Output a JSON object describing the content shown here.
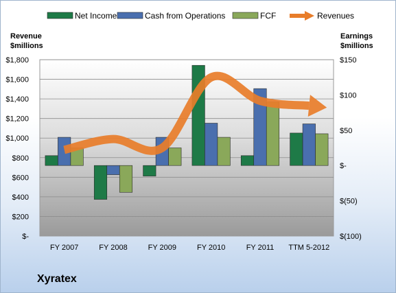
{
  "chart_data": {
    "type": "bar",
    "categories": [
      "FY 2007",
      "FY 2008",
      "FY 2009",
      "FY 2010",
      "FY 2011",
      "TTM 5-2012"
    ],
    "series": [
      {
        "name": "Net Income",
        "axis": "right",
        "kind": "bar",
        "color": "#1e7a47",
        "values": [
          14,
          -48,
          -15,
          142,
          14,
          46
        ]
      },
      {
        "name": "Cash from Operations",
        "axis": "right",
        "kind": "bar",
        "color": "#4a6fae",
        "values": [
          40,
          -13,
          40,
          60,
          109,
          59
        ]
      },
      {
        "name": "FCF",
        "axis": "right",
        "kind": "bar",
        "color": "#8aa85a",
        "values": [
          25,
          -38,
          25,
          40,
          90,
          45
        ]
      },
      {
        "name": "Revenues",
        "axis": "left",
        "kind": "arrow-line",
        "color": "#e87d2a",
        "values": [
          880,
          990,
          900,
          1620,
          1380,
          1330
        ]
      }
    ],
    "left_axis": {
      "label": "Revenue $millions",
      "label_lines": [
        "Revenue",
        "$millions"
      ],
      "range": [
        0,
        1800
      ],
      "ticks": [
        "$-",
        "$200",
        "$400",
        "$600",
        "$800",
        "$1,000",
        "$1,200",
        "$1,400",
        "$1,600",
        "$1,800"
      ]
    },
    "right_axis": {
      "label": "Earnings $millions",
      "label_lines": [
        "Earnings",
        "$millions"
      ],
      "range": [
        -100,
        150
      ],
      "ticks": [
        "$(100)",
        "$(50)",
        "$-",
        "$50",
        "$100",
        "$150"
      ]
    },
    "legend": {
      "position": "top",
      "entries": [
        "Net Income",
        "Cash from Operations",
        "FCF",
        "Revenues"
      ]
    },
    "grid": true
  },
  "company": "Xyratex"
}
